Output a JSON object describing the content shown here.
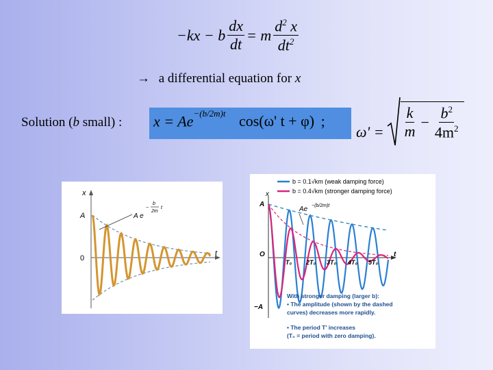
{
  "equation": {
    "lhs": "−kx − b",
    "dx": "dx",
    "dt": "dt",
    "eq_m": "= m",
    "d2x": "d",
    "d2x_x": "x",
    "dt2": "dt",
    "exp2": "2",
    "exp2b": "2"
  },
  "arrow_line": {
    "arrow": "→",
    "text": "a differential equation for",
    "var": "x"
  },
  "solution": {
    "label_pre": "Solution (",
    "label_b": "b",
    "label_post": " small) :",
    "formula_lhs": "x = Ae",
    "exponent": "−(b/2m)t",
    "formula_rhs": "cos(ω' t + φ)",
    "semicolon": ";",
    "omega_lhs": "ω' =",
    "k": "k",
    "m": "m",
    "b2": "b",
    "four_m2": "4m",
    "sq": "2",
    "sq2": "2",
    "highlight_color": "#4f8ee0"
  },
  "left_plot": {
    "x_axis": "t",
    "y_axis": "x",
    "amp": "A",
    "zero": "0",
    "envelope_a": "A e",
    "envelope_exp_num": "b",
    "envelope_exp_den": "2m",
    "envelope_exp_sign": "−",
    "envelope_exp_t": "t",
    "line_color": "#d4952e"
  },
  "right_plot": {
    "legend": [
      {
        "label": "b = 0.1√km (weak damping force)",
        "color": "#2a7fd1"
      },
      {
        "label": "b = 0.4√km (stronger damping force)",
        "color": "#d8267a"
      }
    ],
    "y_axis": "x",
    "amp": "A",
    "neg_amp": "−A",
    "zero": "O",
    "t_axis": "t",
    "envelope": "Ae",
    "envelope_exp": "−(b/2m)t",
    "ticks": [
      "T₀",
      "2T₀",
      "3T₀",
      "4T₀",
      "5T₀"
    ],
    "notes": [
      "With stronger damping (larger b):",
      "• The amplitude (shown by the dashed",
      "  curves) decreases more rapidly.",
      "• The period T' increases",
      "  (T₀ = period with zero damping)."
    ]
  }
}
